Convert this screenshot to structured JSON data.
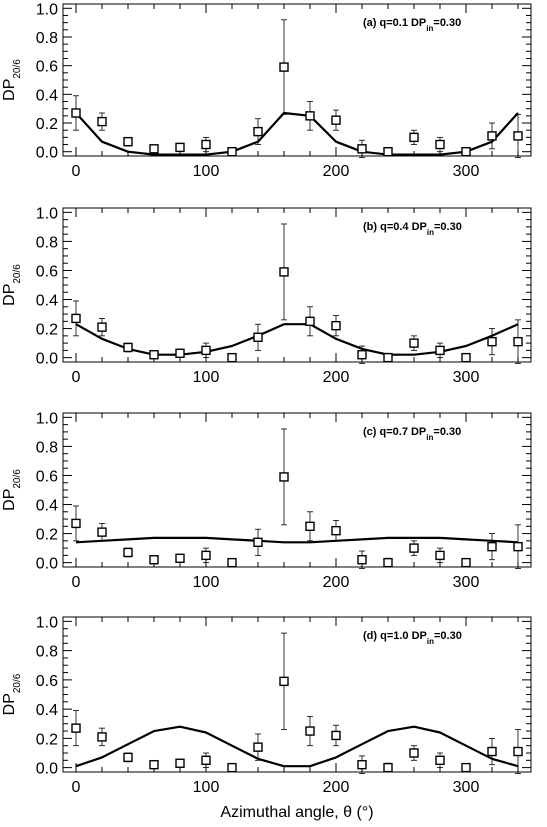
{
  "chart_data": [
    {
      "type": "line",
      "annotation": {
        "prefix": "(a) q=0.1  DP",
        "sub": "in",
        "suffix": "=0.30"
      },
      "ylabel": {
        "main": "DP",
        "sub": "20/6"
      },
      "xlabel": "",
      "xlim": [
        -10,
        350
      ],
      "ylim": [
        -0.03,
        1.03
      ],
      "xticks": [
        0,
        100,
        200,
        300
      ],
      "yticks": [
        0.0,
        0.2,
        0.4,
        0.6,
        0.8,
        1.0
      ],
      "ytick_labels": [
        "0.0",
        "0.2",
        "0.4",
        "0.6",
        "0.8",
        "1.0"
      ],
      "show_xtick_labels": true,
      "series": [
        {
          "kind": "points_with_errorbars",
          "x": [
            0,
            20,
            40,
            60,
            80,
            100,
            120,
            140,
            160,
            180,
            200,
            220,
            240,
            260,
            280,
            300,
            320,
            340
          ],
          "y": [
            0.27,
            0.21,
            0.07,
            0.02,
            0.03,
            0.05,
            0.0,
            0.14,
            0.59,
            0.25,
            0.22,
            0.02,
            0.0,
            0.1,
            0.05,
            0.0,
            0.11,
            0.11
          ],
          "yerr": [
            0.12,
            0.06,
            0.03,
            0.0,
            0.01,
            0.05,
            0.02,
            0.09,
            0.33,
            0.1,
            0.07,
            0.06,
            0.03,
            0.05,
            0.05,
            0.01,
            0.09,
            0.15
          ]
        },
        {
          "kind": "line",
          "x": [
            0,
            20,
            40,
            60,
            80,
            100,
            120,
            140,
            160,
            180,
            200,
            220,
            240,
            260,
            280,
            300,
            320,
            340
          ],
          "y": [
            0.27,
            0.07,
            0.0,
            -0.02,
            -0.02,
            -0.02,
            0.0,
            0.07,
            0.27,
            0.25,
            0.07,
            0.0,
            -0.02,
            -0.02,
            -0.02,
            0.0,
            0.07,
            0.27
          ]
        }
      ]
    },
    {
      "type": "line",
      "annotation": {
        "prefix": "(b) q=0.4  DP",
        "sub": "in",
        "suffix": "=0.30"
      },
      "ylabel": {
        "main": "DP",
        "sub": "20/6"
      },
      "xlabel": "",
      "xlim": [
        -10,
        350
      ],
      "ylim": [
        -0.03,
        1.03
      ],
      "xticks": [
        0,
        100,
        200,
        300
      ],
      "yticks": [
        0.0,
        0.2,
        0.4,
        0.6,
        0.8,
        1.0
      ],
      "ytick_labels": [
        "0.0",
        "0.2",
        "0.4",
        "0.6",
        "0.8",
        "1.0"
      ],
      "show_xtick_labels": true,
      "series": [
        {
          "kind": "points_with_errorbars",
          "x": [
            0,
            20,
            40,
            60,
            80,
            100,
            120,
            140,
            160,
            180,
            200,
            220,
            240,
            260,
            280,
            300,
            320,
            340
          ],
          "y": [
            0.27,
            0.21,
            0.07,
            0.02,
            0.03,
            0.05,
            0.0,
            0.14,
            0.59,
            0.25,
            0.22,
            0.02,
            0.0,
            0.1,
            0.05,
            0.0,
            0.11,
            0.11
          ],
          "yerr": [
            0.12,
            0.06,
            0.03,
            0.0,
            0.01,
            0.05,
            0.02,
            0.09,
            0.33,
            0.1,
            0.07,
            0.06,
            0.03,
            0.05,
            0.05,
            0.01,
            0.09,
            0.15
          ]
        },
        {
          "kind": "line",
          "x": [
            0,
            20,
            40,
            60,
            80,
            100,
            120,
            140,
            160,
            180,
            200,
            220,
            240,
            260,
            280,
            300,
            320,
            340
          ],
          "y": [
            0.23,
            0.13,
            0.06,
            0.02,
            0.02,
            0.04,
            0.08,
            0.15,
            0.23,
            0.23,
            0.13,
            0.06,
            0.02,
            0.02,
            0.04,
            0.08,
            0.15,
            0.23
          ]
        }
      ]
    },
    {
      "type": "line",
      "annotation": {
        "prefix": "(c) q=0.7  DP",
        "sub": "in",
        "suffix": "=0.30"
      },
      "ylabel": {
        "main": "DP",
        "sub": "20/6"
      },
      "xlabel": "",
      "xlim": [
        -10,
        350
      ],
      "ylim": [
        -0.03,
        1.03
      ],
      "xticks": [
        0,
        100,
        200,
        300
      ],
      "yticks": [
        0.0,
        0.2,
        0.4,
        0.6,
        0.8,
        1.0
      ],
      "ytick_labels": [
        "0.0",
        "0.2",
        "0.4",
        "0.6",
        "0.8",
        "1.0"
      ],
      "show_xtick_labels": true,
      "series": [
        {
          "kind": "points_with_errorbars",
          "x": [
            0,
            20,
            40,
            60,
            80,
            100,
            120,
            140,
            160,
            180,
            200,
            220,
            240,
            260,
            280,
            300,
            320,
            340
          ],
          "y": [
            0.27,
            0.21,
            0.07,
            0.02,
            0.03,
            0.05,
            0.0,
            0.14,
            0.59,
            0.25,
            0.22,
            0.02,
            0.0,
            0.1,
            0.05,
            0.0,
            0.11,
            0.11
          ],
          "yerr": [
            0.12,
            0.06,
            0.03,
            0.0,
            0.01,
            0.05,
            0.02,
            0.09,
            0.33,
            0.1,
            0.07,
            0.06,
            0.03,
            0.05,
            0.05,
            0.01,
            0.09,
            0.15
          ]
        },
        {
          "kind": "line",
          "x": [
            0,
            20,
            40,
            60,
            80,
            100,
            120,
            140,
            160,
            180,
            200,
            220,
            240,
            260,
            280,
            300,
            320,
            340
          ],
          "y": [
            0.14,
            0.15,
            0.16,
            0.17,
            0.17,
            0.17,
            0.16,
            0.15,
            0.14,
            0.14,
            0.15,
            0.16,
            0.17,
            0.17,
            0.17,
            0.16,
            0.15,
            0.14
          ]
        }
      ]
    },
    {
      "type": "line",
      "annotation": {
        "prefix": "(d) q=1.0  DP",
        "sub": "in",
        "suffix": "=0.30"
      },
      "ylabel": {
        "main": "DP",
        "sub": "20/6"
      },
      "xlabel": "Azimuthal angle, θ (°)",
      "xlim": [
        -10,
        350
      ],
      "ylim": [
        -0.03,
        1.03
      ],
      "xticks": [
        0,
        100,
        200,
        300
      ],
      "yticks": [
        0.0,
        0.2,
        0.4,
        0.6,
        0.8,
        1.0
      ],
      "ytick_labels": [
        "0.0",
        "0.2",
        "0.4",
        "0.6",
        "0.8",
        "1.0"
      ],
      "show_xtick_labels": true,
      "series": [
        {
          "kind": "points_with_errorbars",
          "x": [
            0,
            20,
            40,
            60,
            80,
            100,
            120,
            140,
            160,
            180,
            200,
            220,
            240,
            260,
            280,
            300,
            320,
            340
          ],
          "y": [
            0.27,
            0.21,
            0.07,
            0.02,
            0.03,
            0.05,
            0.0,
            0.14,
            0.59,
            0.25,
            0.22,
            0.02,
            0.0,
            0.1,
            0.05,
            0.0,
            0.11,
            0.11
          ],
          "yerr": [
            0.12,
            0.06,
            0.03,
            0.0,
            0.01,
            0.05,
            0.02,
            0.09,
            0.33,
            0.1,
            0.07,
            0.06,
            0.03,
            0.05,
            0.05,
            0.01,
            0.09,
            0.15
          ]
        },
        {
          "kind": "line",
          "x": [
            0,
            20,
            40,
            60,
            80,
            100,
            120,
            140,
            160,
            180,
            200,
            220,
            240,
            260,
            280,
            300,
            320,
            340
          ],
          "y": [
            0.01,
            0.07,
            0.16,
            0.25,
            0.28,
            0.24,
            0.15,
            0.06,
            0.01,
            0.01,
            0.07,
            0.16,
            0.25,
            0.28,
            0.24,
            0.15,
            0.06,
            0.01
          ]
        }
      ]
    }
  ]
}
